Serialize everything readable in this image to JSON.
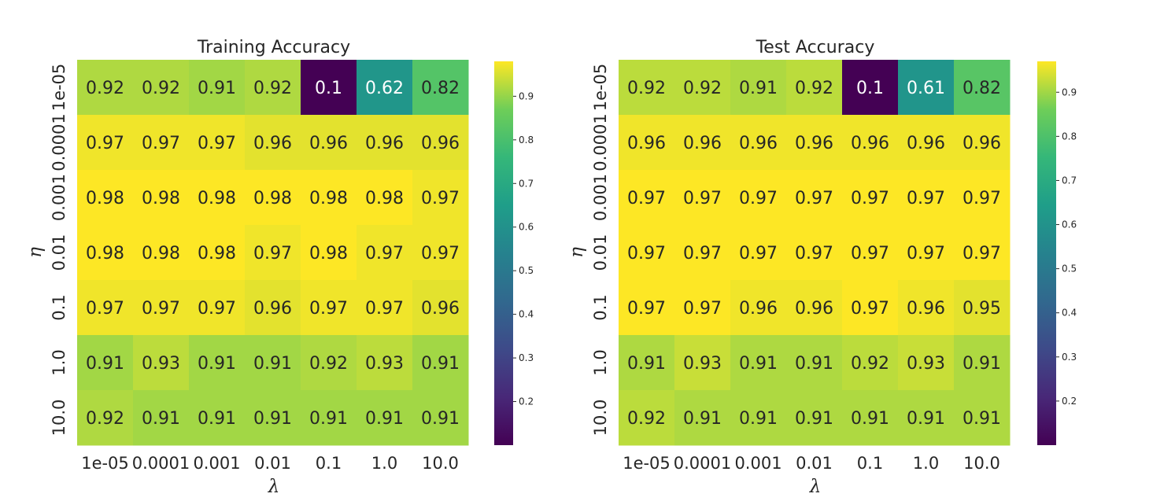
{
  "chart_data": [
    {
      "type": "heatmap",
      "title": "Training Accuracy",
      "xlabel": "λ",
      "ylabel": "η",
      "x_categories": [
        "1e-05",
        "0.0001",
        "0.001",
        "0.01",
        "0.1",
        "1.0",
        "10.0"
      ],
      "y_categories": [
        "1e-05",
        "0.0001",
        "0.001",
        "0.01",
        "0.1",
        "1.0",
        "10.0"
      ],
      "values": [
        [
          0.92,
          0.92,
          0.91,
          0.92,
          0.1,
          0.62,
          0.82
        ],
        [
          0.97,
          0.97,
          0.97,
          0.96,
          0.96,
          0.96,
          0.96
        ],
        [
          0.98,
          0.98,
          0.98,
          0.98,
          0.98,
          0.98,
          0.97
        ],
        [
          0.98,
          0.98,
          0.98,
          0.97,
          0.98,
          0.97,
          0.97
        ],
        [
          0.97,
          0.97,
          0.97,
          0.96,
          0.97,
          0.97,
          0.96
        ],
        [
          0.91,
          0.93,
          0.91,
          0.91,
          0.92,
          0.93,
          0.91
        ],
        [
          0.92,
          0.91,
          0.91,
          0.91,
          0.91,
          0.91,
          0.91
        ]
      ],
      "labels": [
        [
          "0.92",
          "0.92",
          "0.91",
          "0.92",
          "0.1",
          "0.62",
          "0.82"
        ],
        [
          "0.97",
          "0.97",
          "0.97",
          "0.96",
          "0.96",
          "0.96",
          "0.96"
        ],
        [
          "0.98",
          "0.98",
          "0.98",
          "0.98",
          "0.98",
          "0.98",
          "0.97"
        ],
        [
          "0.98",
          "0.98",
          "0.98",
          "0.97",
          "0.98",
          "0.97",
          "0.97"
        ],
        [
          "0.97",
          "0.97",
          "0.97",
          "0.96",
          "0.97",
          "0.97",
          "0.96"
        ],
        [
          "0.91",
          "0.93",
          "0.91",
          "0.91",
          "0.92",
          "0.93",
          "0.91"
        ],
        [
          "0.92",
          "0.91",
          "0.91",
          "0.91",
          "0.91",
          "0.91",
          "0.91"
        ]
      ],
      "colormap": "viridis",
      "color_range": [
        0.1,
        0.98
      ],
      "colorbar_ticks": [
        0.2,
        0.3,
        0.4,
        0.5,
        0.6,
        0.7,
        0.8,
        0.9
      ],
      "colorbar_tick_labels": [
        "0.2",
        "0.3",
        "0.4",
        "0.5",
        "0.6",
        "0.7",
        "0.8",
        "0.9"
      ]
    },
    {
      "type": "heatmap",
      "title": "Test Accuracy",
      "xlabel": "λ",
      "ylabel": "η",
      "x_categories": [
        "1e-05",
        "0.0001",
        "0.001",
        "0.01",
        "0.1",
        "1.0",
        "10.0"
      ],
      "y_categories": [
        "1e-05",
        "0.0001",
        "0.001",
        "0.01",
        "0.1",
        "1.0",
        "10.0"
      ],
      "values": [
        [
          0.92,
          0.92,
          0.91,
          0.92,
          0.1,
          0.61,
          0.82
        ],
        [
          0.96,
          0.96,
          0.96,
          0.96,
          0.96,
          0.96,
          0.96
        ],
        [
          0.97,
          0.97,
          0.97,
          0.97,
          0.97,
          0.97,
          0.97
        ],
        [
          0.97,
          0.97,
          0.97,
          0.97,
          0.97,
          0.97,
          0.97
        ],
        [
          0.97,
          0.97,
          0.96,
          0.96,
          0.97,
          0.96,
          0.95
        ],
        [
          0.91,
          0.93,
          0.91,
          0.91,
          0.92,
          0.93,
          0.91
        ],
        [
          0.92,
          0.91,
          0.91,
          0.91,
          0.91,
          0.91,
          0.91
        ]
      ],
      "labels": [
        [
          "0.92",
          "0.92",
          "0.91",
          "0.92",
          "0.1",
          "0.61",
          "0.82"
        ],
        [
          "0.96",
          "0.96",
          "0.96",
          "0.96",
          "0.96",
          "0.96",
          "0.96"
        ],
        [
          "0.97",
          "0.97",
          "0.97",
          "0.97",
          "0.97",
          "0.97",
          "0.97"
        ],
        [
          "0.97",
          "0.97",
          "0.97",
          "0.97",
          "0.97",
          "0.97",
          "0.97"
        ],
        [
          "0.97",
          "0.97",
          "0.96",
          "0.96",
          "0.97",
          "0.96",
          "0.95"
        ],
        [
          "0.91",
          "0.93",
          "0.91",
          "0.91",
          "0.92",
          "0.93",
          "0.91"
        ],
        [
          "0.92",
          "0.91",
          "0.91",
          "0.91",
          "0.91",
          "0.91",
          "0.91"
        ]
      ],
      "colormap": "viridis",
      "color_range": [
        0.1,
        0.97
      ],
      "colorbar_ticks": [
        0.2,
        0.3,
        0.4,
        0.5,
        0.6,
        0.7,
        0.8,
        0.9
      ],
      "colorbar_tick_labels": [
        "0.2",
        "0.3",
        "0.4",
        "0.5",
        "0.6",
        "0.7",
        "0.8",
        "0.9"
      ]
    }
  ]
}
